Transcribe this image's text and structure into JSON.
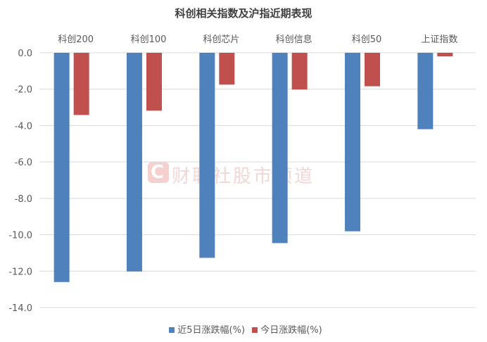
{
  "chart_data": {
    "type": "bar",
    "title": "科创相关指数及沪指近期表现",
    "categories": [
      "科创200",
      "科创100",
      "科创芯片",
      "科创信息",
      "科创50",
      "上证指数"
    ],
    "series": [
      {
        "name": "近5日涨跌幅(%)",
        "color": "#4f81bd",
        "values": [
          -12.6,
          -12.02,
          -11.27,
          -10.46,
          -9.81,
          -4.2
        ]
      },
      {
        "name": "今日涨跌幅(%)",
        "color": "#c0504d",
        "values": [
          -3.42,
          -3.18,
          -1.75,
          -2.02,
          -1.84,
          -0.2
        ]
      }
    ],
    "yticks": [
      "0.0",
      "-2.0",
      "-4.0",
      "-6.0",
      "-8.0",
      "-10.0",
      "-12.0",
      "-14.0"
    ],
    "ylim": [
      -14,
      0
    ],
    "xlabel": "",
    "ylabel": "",
    "grid": true,
    "category_labels_position": "top",
    "legend_position": "bottom"
  },
  "watermark": {
    "logo": "C",
    "text": "财联社股市频道"
  }
}
